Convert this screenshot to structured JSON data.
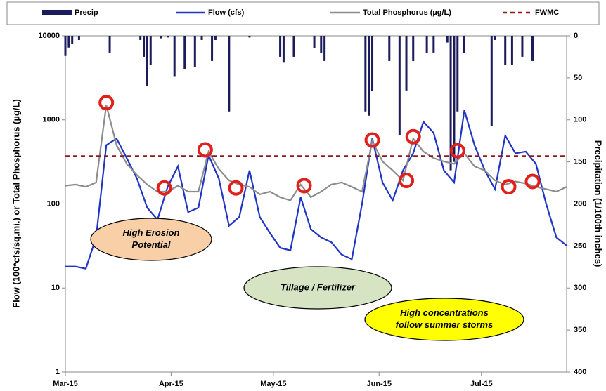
{
  "chart_data": {
    "type": "line",
    "yscale": "log",
    "ylabel": "Flow (100*cfs/sq.mi.) or Total Phosphorus  (µg/L)",
    "y2label": "Precipitation (1/100th inches)",
    "xlim": [
      0,
      147
    ],
    "xticks": [
      {
        "value": 0,
        "label": "Mar-15"
      },
      {
        "value": 31,
        "label": "Apr-15"
      },
      {
        "value": 61,
        "label": "May-15"
      },
      {
        "value": 92,
        "label": "Jun-15"
      },
      {
        "value": 122,
        "label": "Jul-15"
      }
    ],
    "ylim": [
      1,
      10000
    ],
    "yticks": [
      1,
      10,
      100,
      1000,
      10000
    ],
    "y2lim": [
      0,
      400
    ],
    "y2ticks": [
      0,
      50,
      100,
      150,
      200,
      250,
      300,
      350,
      400
    ],
    "y2_inverted": true,
    "x": [
      0,
      3,
      6,
      9,
      12,
      15,
      18,
      21,
      24,
      27,
      30,
      33,
      36,
      39,
      42,
      45,
      48,
      51,
      54,
      57,
      60,
      63,
      66,
      69,
      72,
      75,
      78,
      81,
      84,
      87,
      90,
      93,
      96,
      99,
      102,
      105,
      108,
      111,
      114,
      117,
      120,
      123,
      126,
      129,
      132,
      135,
      138,
      141,
      144,
      147
    ],
    "series": [
      {
        "name": "Precip",
        "type": "bar",
        "axis": "y2",
        "color": "#1c1c5c",
        "x": [
          0,
          1,
          2,
          4,
          13,
          22,
          23,
          24,
          25,
          28,
          30,
          32,
          35,
          38,
          40,
          43,
          44,
          48,
          54,
          63,
          64,
          67,
          73,
          75,
          76,
          88,
          89,
          90,
          95,
          98,
          100,
          102,
          106,
          108,
          112,
          113,
          114,
          115,
          117,
          125,
          126,
          129,
          131,
          134,
          137
        ],
        "values": [
          24,
          14,
          10,
          5,
          20,
          5,
          25,
          60,
          35,
          3,
          2,
          48,
          40,
          37,
          5,
          30,
          5,
          90,
          2,
          25,
          32,
          25,
          15,
          20,
          30,
          90,
          95,
          66,
          30,
          118,
          65,
          30,
          20,
          20,
          8,
          160,
          150,
          90,
          20,
          107,
          5,
          35,
          35,
          25,
          30
        ]
      },
      {
        "name": "Flow (cfs)",
        "type": "line",
        "color": "#1f34c4",
        "values": [
          18,
          18,
          17,
          40,
          500,
          600,
          350,
          200,
          90,
          65,
          160,
          280,
          80,
          90,
          380,
          200,
          55,
          70,
          250,
          70,
          45,
          30,
          28,
          120,
          50,
          40,
          35,
          25,
          22,
          100,
          600,
          180,
          110,
          250,
          400,
          950,
          700,
          250,
          180,
          1300,
          500,
          250,
          150,
          650,
          400,
          420,
          300,
          100,
          40,
          32
        ]
      },
      {
        "name": "Total Phosphorus (µg/L)",
        "type": "line",
        "color": "#8c8c8c",
        "values": [
          165,
          170,
          160,
          180,
          1500,
          500,
          300,
          220,
          170,
          140,
          140,
          165,
          140,
          140,
          420,
          260,
          190,
          170,
          160,
          130,
          140,
          120,
          110,
          170,
          120,
          140,
          170,
          180,
          160,
          140,
          560,
          320,
          250,
          190,
          600,
          420,
          350,
          320,
          300,
          400,
          280,
          250,
          190,
          170,
          185,
          175,
          160,
          150,
          140,
          160
        ]
      },
      {
        "name": "FWMC",
        "type": "hline",
        "color": "#8b1a1a",
        "value": 370
      }
    ],
    "highlights": [
      {
        "x": 12,
        "y": 1600
      },
      {
        "x": 29,
        "y": 155
      },
      {
        "x": 41,
        "y": 440
      },
      {
        "x": 50,
        "y": 155
      },
      {
        "x": 70,
        "y": 165
      },
      {
        "x": 90,
        "y": 575
      },
      {
        "x": 100,
        "y": 190
      },
      {
        "x": 102,
        "y": 630
      },
      {
        "x": 115,
        "y": 430
      },
      {
        "x": 130,
        "y": 160
      },
      {
        "x": 137,
        "y": 185
      }
    ],
    "annotations": [
      {
        "lines": [
          "High Erosion",
          "Potential"
        ],
        "color": "#f9cfa8"
      },
      {
        "lines": [
          "Tillage  / Fertilizer"
        ],
        "color": "#d6e4c4"
      },
      {
        "lines": [
          "High concentrations",
          "follow summer storms"
        ],
        "color": "#ffff00"
      }
    ]
  }
}
